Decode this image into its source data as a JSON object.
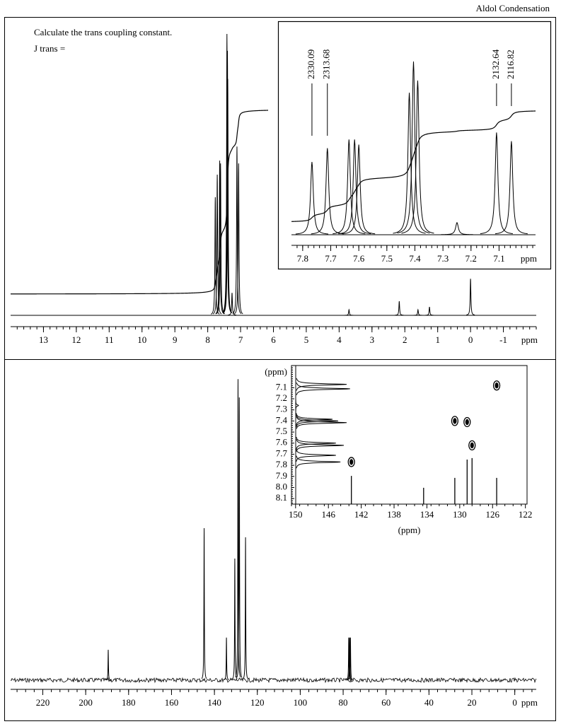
{
  "header": {
    "title": "Aldol Condensation"
  },
  "chart_data": [
    {
      "type": "spectrum",
      "annotations": [
        "Calculate the trans coupling constant.",
        "J trans ="
      ],
      "xlabel": "ppm",
      "xlim": [
        14,
        -2
      ],
      "xticks": [
        13,
        12,
        11,
        10,
        9,
        8,
        7,
        6,
        5,
        4,
        3,
        2,
        1,
        0,
        -1
      ],
      "ylim": [
        0,
        100
      ],
      "color": "#000000",
      "integral": true,
      "x": [
        7.77,
        7.71,
        7.635,
        7.61,
        7.415,
        7.4,
        7.39,
        7.26,
        7.11,
        7.06,
        3.7,
        2.17,
        1.6,
        1.25,
        0.0
      ],
      "values": [
        42,
        50,
        55,
        54,
        100,
        94,
        84,
        8,
        60,
        54,
        2,
        5,
        2,
        3,
        13
      ]
    },
    {
      "type": "spectrum",
      "xlabel": "ppm",
      "xlim": [
        7.84,
        6.97
      ],
      "xticks": [
        7.8,
        7.7,
        7.6,
        7.5,
        7.4,
        7.3,
        7.2,
        7.1
      ],
      "ylim": [
        0,
        100
      ],
      "color": "#000000",
      "integral": true,
      "x": [
        7.767,
        7.712,
        7.635,
        7.615,
        7.6,
        7.42,
        7.405,
        7.39,
        7.25,
        7.109,
        7.056
      ],
      "values": [
        42,
        50,
        55,
        55,
        52,
        82,
        100,
        89,
        7,
        59,
        54
      ],
      "peak_labels": [
        {
          "value": 7.767,
          "label": "2330.09"
        },
        {
          "value": 7.712,
          "label": "2313.68"
        },
        {
          "value": 7.109,
          "label": "2132.64"
        },
        {
          "value": 7.056,
          "label": "2116.82"
        }
      ]
    },
    {
      "type": "spectrum",
      "xlabel": "ppm",
      "xlim": [
        235,
        -10
      ],
      "xticks": [
        220,
        200,
        180,
        160,
        140,
        120,
        100,
        80,
        60,
        40,
        20,
        0
      ],
      "ylim": [
        0,
        100
      ],
      "color": "#000000",
      "noise": true,
      "x": [
        189.5,
        144.8,
        134.4,
        130.5,
        129.0,
        128.4,
        125.5,
        77.4,
        77.0,
        76.6
      ],
      "values": [
        10,
        50,
        14,
        40,
        99,
        93,
        47,
        14,
        14,
        14
      ]
    },
    {
      "type": "hsqc",
      "xlabel": "(ppm)",
      "ylabel": "(ppm)",
      "xlim": [
        150.5,
        121.8
      ],
      "xticks": [
        150,
        146,
        142,
        138,
        134,
        130,
        126,
        122
      ],
      "ylim": [
        6.9,
        8.15
      ],
      "yticks": [
        7.1,
        7.2,
        7.3,
        7.4,
        7.5,
        7.6,
        7.7,
        7.8,
        7.9,
        {
          "value": 8,
          "label": "8.0"
        },
        8.1
      ],
      "crosspeaks": {
        "x": [
          125.5,
          130.6,
          129.1,
          128.5,
          143.2
        ],
        "y": [
          7.08,
          7.4,
          7.41,
          7.62,
          7.77
        ]
      },
      "x_projection": {
        "x": [
          143.2,
          134.4,
          130.6,
          129.1,
          128.5,
          125.5
        ],
        "values": [
          57,
          33,
          53,
          90,
          93,
          53
        ]
      },
      "y_projection": {
        "x": [
          7.07,
          7.11,
          7.26,
          7.385,
          7.4,
          7.415,
          7.6,
          7.62,
          7.71,
          7.77
        ],
        "values": [
          90,
          96,
          5,
          65,
          75,
          90,
          71,
          85,
          71,
          79
        ]
      }
    }
  ]
}
